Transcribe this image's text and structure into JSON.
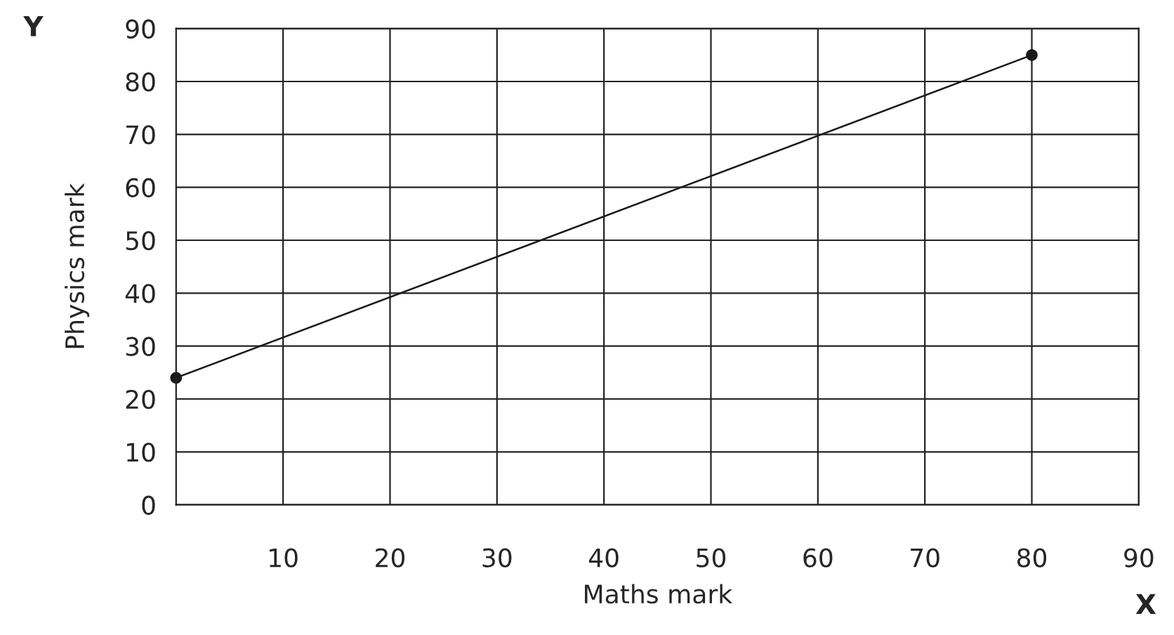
{
  "chart_data": {
    "type": "line",
    "xlabel": "Maths mark",
    "ylabel": "Physics mark",
    "annotations": [
      "Y",
      "X"
    ],
    "x": [
      0,
      80
    ],
    "series": [
      {
        "color": "#1a1a1a",
        "values": [
          24,
          85
        ]
      }
    ],
    "xlim": [
      0,
      90
    ],
    "xticks": [
      10,
      20,
      30,
      40,
      50,
      60,
      70,
      80,
      90
    ],
    "ylim": [
      0,
      90
    ],
    "yticks": [
      0,
      10,
      20,
      30,
      40,
      50,
      60,
      70,
      80,
      90
    ],
    "grid": true,
    "marker": "circle",
    "line_style": "solid"
  }
}
